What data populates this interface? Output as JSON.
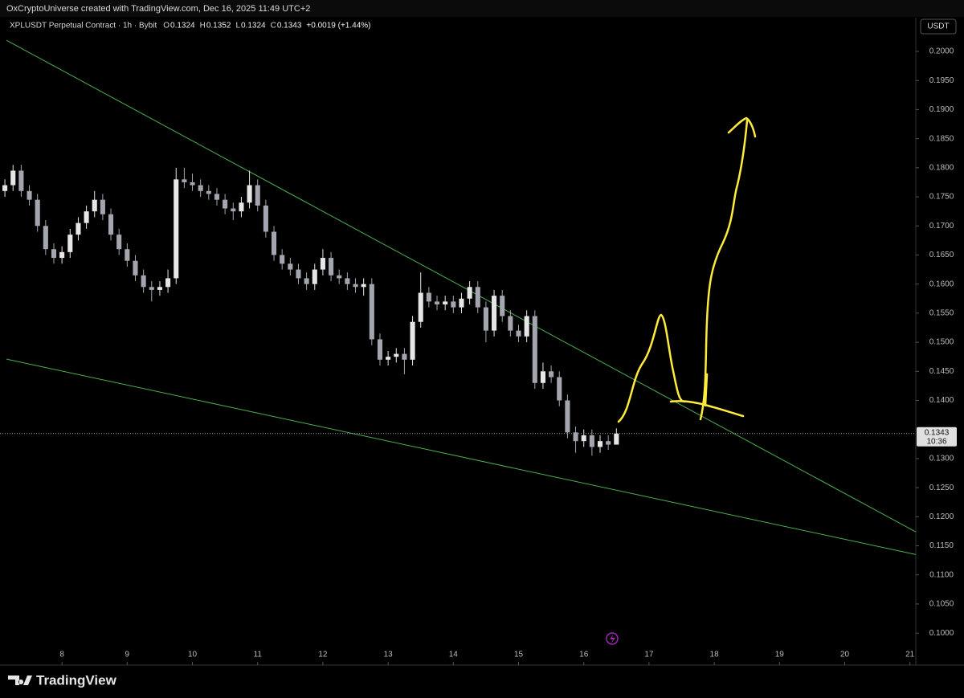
{
  "chart_data": {
    "type": "candlestick",
    "attribution": "OxCryptoUniverse created with TradingView.com, Dec 16, 2025 11:49 UTC+2",
    "title": "XPLUSDT Perpetual Contract · 1h · Bybit",
    "ohlc_legend": [
      {
        "label": "O",
        "value": 0.1324
      },
      {
        "label": "H",
        "value": 0.1352
      },
      {
        "label": "L",
        "value": 0.1324
      },
      {
        "label": "C",
        "value": 0.1343
      }
    ],
    "change": "+0.0019 (+1.44%)",
    "currency": "USDT",
    "brand": "TradingView",
    "up_color": "#e6e6e6",
    "down_color": "#a3a6ae",
    "x": [
      7.125,
      7.25,
      7.375,
      7.5,
      7.625,
      7.75,
      7.875,
      8.0,
      8.125,
      8.25,
      8.375,
      8.5,
      8.625,
      8.75,
      8.875,
      9.0,
      9.125,
      9.25,
      9.375,
      9.5,
      9.625,
      9.75,
      9.875,
      10.0,
      10.125,
      10.25,
      10.375,
      10.5,
      10.625,
      10.75,
      10.875,
      11.0,
      11.125,
      11.25,
      11.375,
      11.5,
      11.625,
      11.75,
      11.875,
      12.0,
      12.125,
      12.25,
      12.375,
      12.5,
      12.625,
      12.75,
      12.875,
      13.0,
      13.125,
      13.25,
      13.375,
      13.5,
      13.625,
      13.75,
      13.875,
      14.0,
      14.125,
      14.25,
      14.375,
      14.5,
      14.625,
      14.75,
      14.875,
      15.0,
      15.125,
      15.25,
      15.375,
      15.5,
      15.625,
      15.75,
      15.875,
      16.0,
      16.125,
      16.25,
      16.375,
      16.5
    ],
    "open": [
      0.176,
      0.177,
      0.1795,
      0.176,
      0.1745,
      0.17,
      0.166,
      0.1645,
      0.1655,
      0.1685,
      0.1705,
      0.1725,
      0.1745,
      0.172,
      0.1685,
      0.166,
      0.164,
      0.1615,
      0.1595,
      0.159,
      0.1595,
      0.161,
      0.178,
      0.1775,
      0.177,
      0.176,
      0.1755,
      0.1745,
      0.173,
      0.1725,
      0.174,
      0.177,
      0.1735,
      0.169,
      0.165,
      0.1635,
      0.1625,
      0.161,
      0.16,
      0.1625,
      0.1645,
      0.1615,
      0.161,
      0.16,
      0.1595,
      0.16,
      0.1505,
      0.147,
      0.1475,
      0.148,
      0.147,
      0.1535,
      0.1585,
      0.157,
      0.1565,
      0.157,
      0.156,
      0.1575,
      0.1595,
      0.156,
      0.152,
      0.158,
      0.1545,
      0.152,
      0.151,
      0.1545,
      0.143,
      0.145,
      0.144,
      0.14,
      0.1345,
      0.133,
      0.134,
      0.132,
      0.133,
      0.1324
    ],
    "high": [
      0.178,
      0.1805,
      0.1805,
      0.177,
      0.1755,
      0.171,
      0.167,
      0.1665,
      0.1695,
      0.1715,
      0.1735,
      0.176,
      0.1755,
      0.173,
      0.1695,
      0.167,
      0.165,
      0.1625,
      0.1605,
      0.1605,
      0.1625,
      0.18,
      0.18,
      0.179,
      0.178,
      0.177,
      0.1765,
      0.1755,
      0.174,
      0.175,
      0.1795,
      0.178,
      0.1745,
      0.17,
      0.166,
      0.1645,
      0.1635,
      0.162,
      0.1635,
      0.166,
      0.1655,
      0.1625,
      0.162,
      0.161,
      0.161,
      0.161,
      0.1515,
      0.1485,
      0.149,
      0.149,
      0.1545,
      0.162,
      0.1595,
      0.158,
      0.158,
      0.158,
      0.1585,
      0.1605,
      0.1605,
      0.157,
      0.159,
      0.159,
      0.1555,
      0.153,
      0.1555,
      0.1555,
      0.1465,
      0.146,
      0.145,
      0.141,
      0.1355,
      0.135,
      0.135,
      0.134,
      0.134,
      0.1352
    ],
    "low": [
      0.175,
      0.176,
      0.175,
      0.1735,
      0.169,
      0.165,
      0.1635,
      0.1635,
      0.1645,
      0.1675,
      0.1695,
      0.1715,
      0.171,
      0.1675,
      0.165,
      0.163,
      0.1605,
      0.1585,
      0.157,
      0.158,
      0.1585,
      0.16,
      0.1765,
      0.176,
      0.175,
      0.1745,
      0.1735,
      0.172,
      0.171,
      0.1715,
      0.173,
      0.1725,
      0.168,
      0.164,
      0.1625,
      0.1615,
      0.16,
      0.159,
      0.159,
      0.1615,
      0.1605,
      0.16,
      0.159,
      0.1585,
      0.158,
      0.1495,
      0.146,
      0.146,
      0.1465,
      0.1445,
      0.146,
      0.1525,
      0.156,
      0.1555,
      0.1555,
      0.155,
      0.155,
      0.1565,
      0.155,
      0.15,
      0.151,
      0.1535,
      0.151,
      0.15,
      0.15,
      0.142,
      0.142,
      0.143,
      0.139,
      0.1335,
      0.131,
      0.132,
      0.1305,
      0.131,
      0.1315,
      0.1324
    ],
    "close": [
      0.177,
      0.1795,
      0.176,
      0.1745,
      0.17,
      0.166,
      0.1645,
      0.1655,
      0.1685,
      0.1705,
      0.1725,
      0.1745,
      0.172,
      0.1685,
      0.166,
      0.164,
      0.1615,
      0.1595,
      0.159,
      0.1595,
      0.161,
      0.178,
      0.1775,
      0.177,
      0.176,
      0.1755,
      0.1745,
      0.173,
      0.1725,
      0.174,
      0.177,
      0.1735,
      0.169,
      0.165,
      0.1635,
      0.1625,
      0.161,
      0.16,
      0.1625,
      0.1645,
      0.1615,
      0.161,
      0.16,
      0.1595,
      0.16,
      0.1505,
      0.147,
      0.1475,
      0.148,
      0.147,
      0.1535,
      0.1585,
      0.157,
      0.1565,
      0.157,
      0.156,
      0.1575,
      0.1595,
      0.156,
      0.152,
      0.158,
      0.1545,
      0.152,
      0.151,
      0.1545,
      0.143,
      0.145,
      0.144,
      0.14,
      0.1345,
      0.133,
      0.134,
      0.132,
      0.133,
      0.1324,
      0.1343
    ],
    "trendline_color": "#4caf50",
    "trendlines": [
      {
        "x": [
          7.15,
          21.09
        ],
        "values": [
          0.2019,
          0.1174
        ]
      },
      {
        "x": [
          7.15,
          21.09
        ],
        "values": [
          0.1471,
          0.1135
        ]
      }
    ],
    "last_price": 0.1343,
    "countdown": "10:36",
    "xlim": [
      7.05,
      21.09
    ],
    "xticks": [
      8,
      9,
      10,
      11,
      12,
      13,
      14,
      15,
      16,
      17,
      18,
      19,
      20,
      21
    ],
    "ylim": [
      0.0945,
      0.2058
    ],
    "yticks": [
      {
        "value": 0.1,
        "label": "0.1000"
      },
      {
        "value": 0.105,
        "label": "0.1050"
      },
      {
        "value": 0.11,
        "label": "0.1100"
      },
      {
        "value": 0.115,
        "label": "0.1150"
      },
      {
        "value": 0.12,
        "label": "0.1200"
      },
      {
        "value": 0.125,
        "label": "0.1250"
      },
      {
        "value": 0.13,
        "label": "0.1300"
      },
      {
        "value": 0.14,
        "label": "0.1400"
      },
      {
        "value": 0.145,
        "label": "0.1450"
      },
      {
        "value": 0.15,
        "label": "0.1500"
      },
      {
        "value": 0.155,
        "label": "0.1550"
      },
      {
        "value": 0.16,
        "label": "0.1600"
      },
      {
        "value": 0.165,
        "label": "0.1650"
      },
      {
        "value": 0.17,
        "label": "0.1700"
      },
      {
        "value": 0.175,
        "label": "0.1750"
      },
      {
        "value": 0.18,
        "label": "0.1800"
      },
      {
        "value": 0.185,
        "label": "0.1850"
      },
      {
        "value": 0.19,
        "label": "0.1900"
      },
      {
        "value": 0.195,
        "label": "0.1950"
      },
      {
        "value": 0.2,
        "label": "0.2000"
      }
    ]
  }
}
